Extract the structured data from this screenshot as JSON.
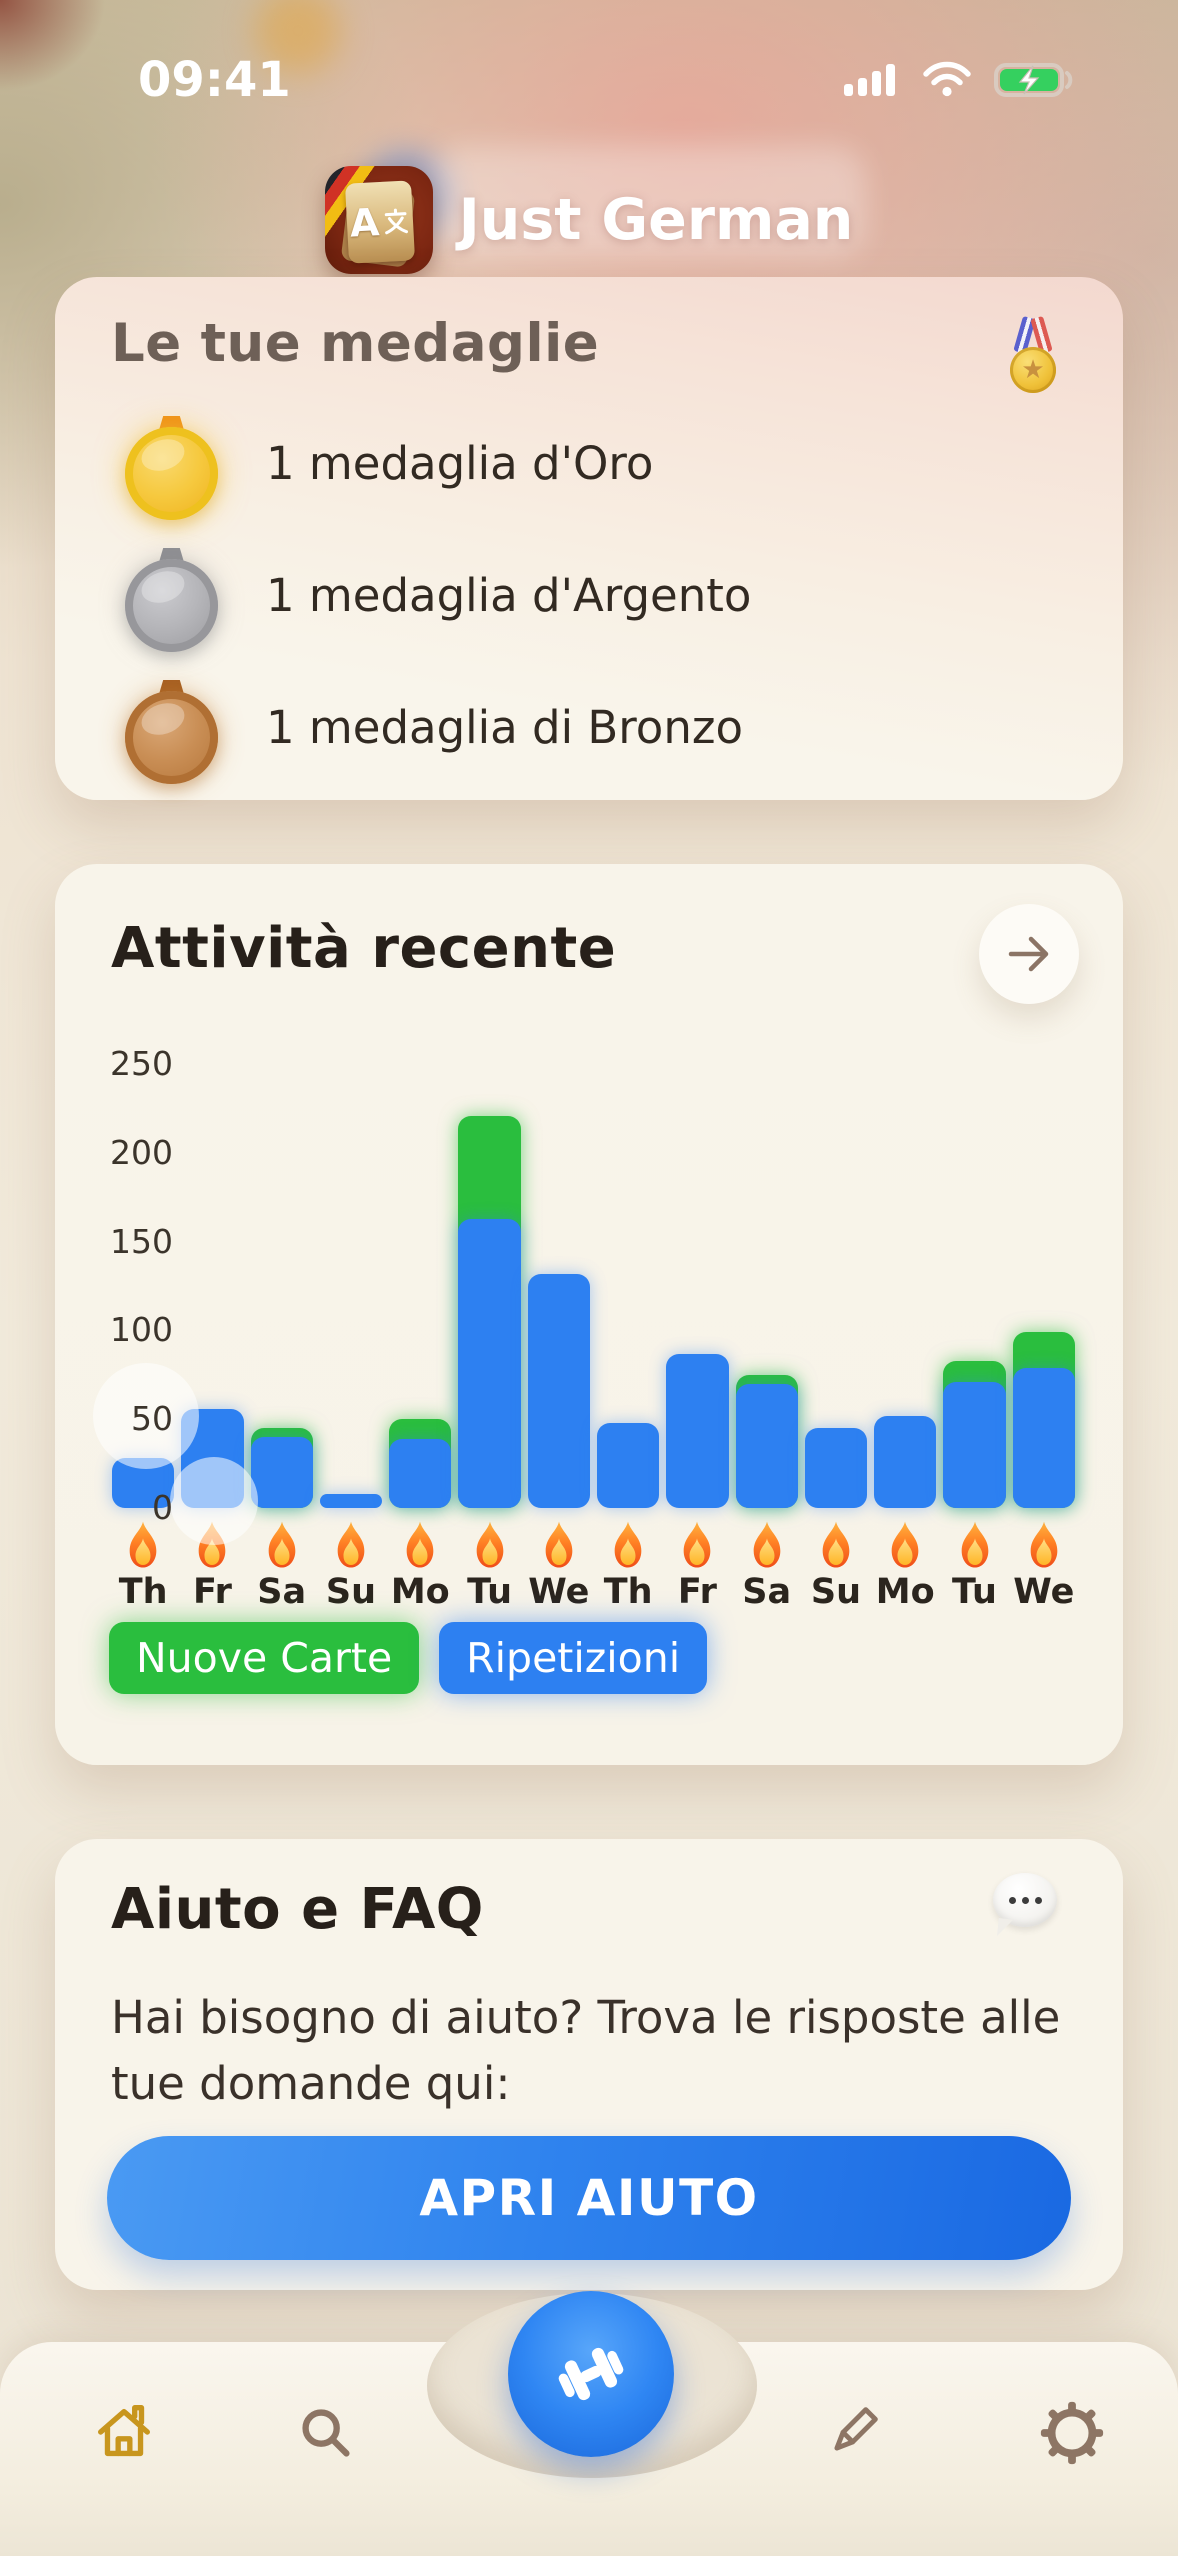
{
  "status_bar": {
    "time": "09:41",
    "icons": [
      "cellular-signal-icon",
      "wifi-icon",
      "battery-charging-icon"
    ]
  },
  "header": {
    "app_title": "Just German",
    "app_icon_label": "A文"
  },
  "medals_card": {
    "title": "Le tue medaglie",
    "corner_icon": "sports-medal-icon",
    "items": [
      {
        "metal": "gold",
        "label": "1 medaglia d'Oro"
      },
      {
        "metal": "silver",
        "label": "1 medaglia d'Argento"
      },
      {
        "metal": "bronze",
        "label": "1 medaglia di Bronzo"
      }
    ]
  },
  "activity_card": {
    "title": "Attività recente",
    "arrow_icon": "arrow-right-icon",
    "legend": [
      {
        "label": "Nuove Carte",
        "color": "#2abe3e"
      },
      {
        "label": "Ripetizioni",
        "color": "#2d80f1"
      }
    ]
  },
  "chart_data": {
    "type": "bar",
    "stacked": true,
    "title": "Attività recente",
    "categories": [
      "Th",
      "Fr",
      "Sa",
      "Su",
      "Mo",
      "Tu",
      "We",
      "Th",
      "Fr",
      "Sa",
      "Su",
      "Mo",
      "Tu",
      "We"
    ],
    "series": [
      {
        "name": "Ripetizioni",
        "color": "#2d80f1",
        "values": [
          28,
          56,
          40,
          8,
          39,
          163,
          132,
          48,
          87,
          70,
          45,
          52,
          71,
          79
        ]
      },
      {
        "name": "Nuove Carte",
        "color": "#2abe3e",
        "values": [
          0,
          0,
          5,
          0,
          11,
          58,
          0,
          0,
          0,
          5,
          0,
          0,
          12,
          20
        ]
      }
    ],
    "xlabel": "",
    "ylabel": "",
    "yticks": [
      0,
      50,
      100,
      150,
      200,
      250
    ],
    "ylim": [
      0,
      250
    ],
    "grid": false,
    "legend_position": "bottom-left",
    "x_marker_icon": "flame-icon"
  },
  "help_card": {
    "title": "Aiuto e FAQ",
    "corner_icon": "speech-balloon-icon",
    "body": "Hai bisogno di aiuto? Trova le risposte alle tue domande qui:",
    "button_label": "APRI AIUTO"
  },
  "tab_bar": {
    "items": [
      {
        "name": "home",
        "icon": "home-icon",
        "active": true,
        "color": "#c8961e"
      },
      {
        "name": "search",
        "icon": "search-icon",
        "active": false,
        "color": "#8d7564"
      },
      {
        "name": "training",
        "icon": "dumbbell-icon",
        "active": false,
        "color": "#2f86f3"
      },
      {
        "name": "edit",
        "icon": "pencil-icon",
        "active": false,
        "color": "#8d7564"
      },
      {
        "name": "settings",
        "icon": "gear-icon",
        "active": false,
        "color": "#8d7564"
      }
    ]
  }
}
